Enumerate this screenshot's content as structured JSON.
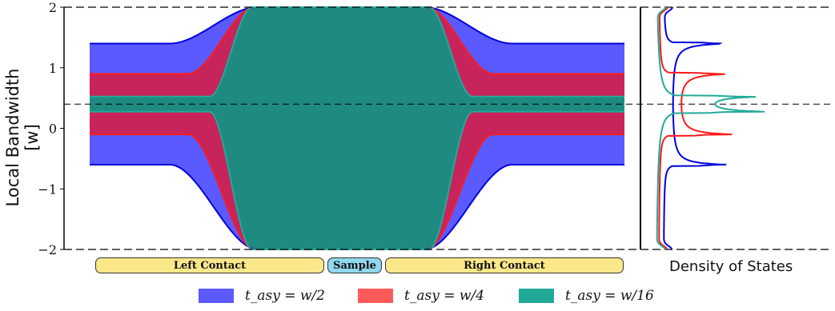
{
  "chart_data": {
    "type": "area",
    "ylabel": "Local Bandwidth [w]",
    "ylim": [
      -2,
      2
    ],
    "yticks": [
      "2",
      "1",
      "0",
      "−1",
      "−2"
    ],
    "grid": false,
    "reference_line_y": 0.4,
    "series": [
      {
        "name": "t_asy = w/2",
        "legend": "tₐₛᵧ = w/2",
        "color": "#5a5aff",
        "edge_color": "#0000dd",
        "contact_band": [
          -0.6,
          1.4
        ]
      },
      {
        "name": "t_asy = w/4",
        "legend": "tₐₛᵧ = w/4",
        "color": "#c8245c",
        "edge_color": "#ff1a1a",
        "contact_band": [
          -0.1,
          0.9
        ]
      },
      {
        "name": "t_asy = w/16",
        "legend": "tₐₛᵧ = w/16",
        "color": "#1e8a80",
        "edge_color": "#22aa99",
        "contact_band": [
          0.275,
          0.525
        ]
      }
    ],
    "sample_band": [
      -2,
      2
    ],
    "dos_panel": {
      "title": "Density of States"
    }
  },
  "regions": {
    "left_contact": "Left Contact",
    "sample": "Sample",
    "right_contact": "Right Contact"
  },
  "legend": {
    "w2": "t_asy = w/2",
    "w4": "t_asy = w/4",
    "w16": "t_asy = w/16"
  }
}
